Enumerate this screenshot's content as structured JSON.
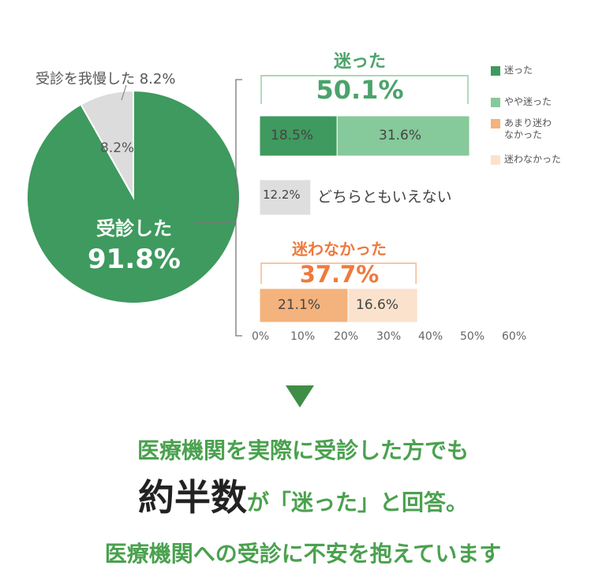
{
  "chart_data": [
    {
      "type": "pie",
      "slices": [
        {
          "label": "受診した",
          "value": 91.8,
          "value_text": "91.8%",
          "color": "#3e9a5e"
        },
        {
          "label": "受診を我慢した",
          "value": 8.2,
          "value_text": "8.2%",
          "color": "#dcdcdc"
        }
      ],
      "callout": "受診を我慢した 8.2%"
    },
    {
      "type": "bar",
      "orientation": "horizontal",
      "stacked": true,
      "xlim": [
        0,
        60
      ],
      "ticks": [
        "0%",
        "10%",
        "20%",
        "30%",
        "40%",
        "50%",
        "60%"
      ],
      "groups": [
        {
          "title": "迷った",
          "total": "50.1%",
          "title_color": "#4aa36a",
          "bracket_color": "#8fcc9e",
          "segments": [
            {
              "name": "迷った",
              "value": 18.5,
              "label": "18.5%",
              "color": "#3e9a5e"
            },
            {
              "name": "やや迷った",
              "value": 31.6,
              "label": "31.6%",
              "color": "#86c99a"
            }
          ]
        },
        {
          "title": "",
          "total": "",
          "text": "どちらともいえない",
          "segments": [
            {
              "name": "どちらともいえない",
              "value": 12.2,
              "label": "12.2%",
              "color": "#dedede"
            }
          ]
        },
        {
          "title": "迷わなかった",
          "total": "37.7%",
          "title_color": "#ee7a3e",
          "bracket_color": "#f5b48a",
          "segments": [
            {
              "name": "あまり迷わなかった",
              "value": 21.1,
              "label": "21.1%",
              "color": "#f4b27c"
            },
            {
              "name": "迷わなかった",
              "value": 16.6,
              "label": "16.6%",
              "color": "#fbe2cc"
            }
          ]
        }
      ],
      "legend": [
        {
          "label": "迷った",
          "color": "#3e9a5e"
        },
        {
          "label": "やや迷った",
          "color": "#86c99a"
        },
        {
          "label": "あまり迷わ\nなかった",
          "color": "#f4b27c"
        },
        {
          "label": "迷わなかった",
          "color": "#fbe2cc"
        }
      ],
      "legend_position": "top-right"
    }
  ],
  "message": {
    "line1": "医療機関を実際に受診した方でも",
    "line2_big": "約半数",
    "line2_small": "が「迷った」と回答。",
    "line3": "医療機関への受診に不安を抱えています",
    "green": "#4aa14e",
    "arrow_color": "#3e8f45"
  }
}
